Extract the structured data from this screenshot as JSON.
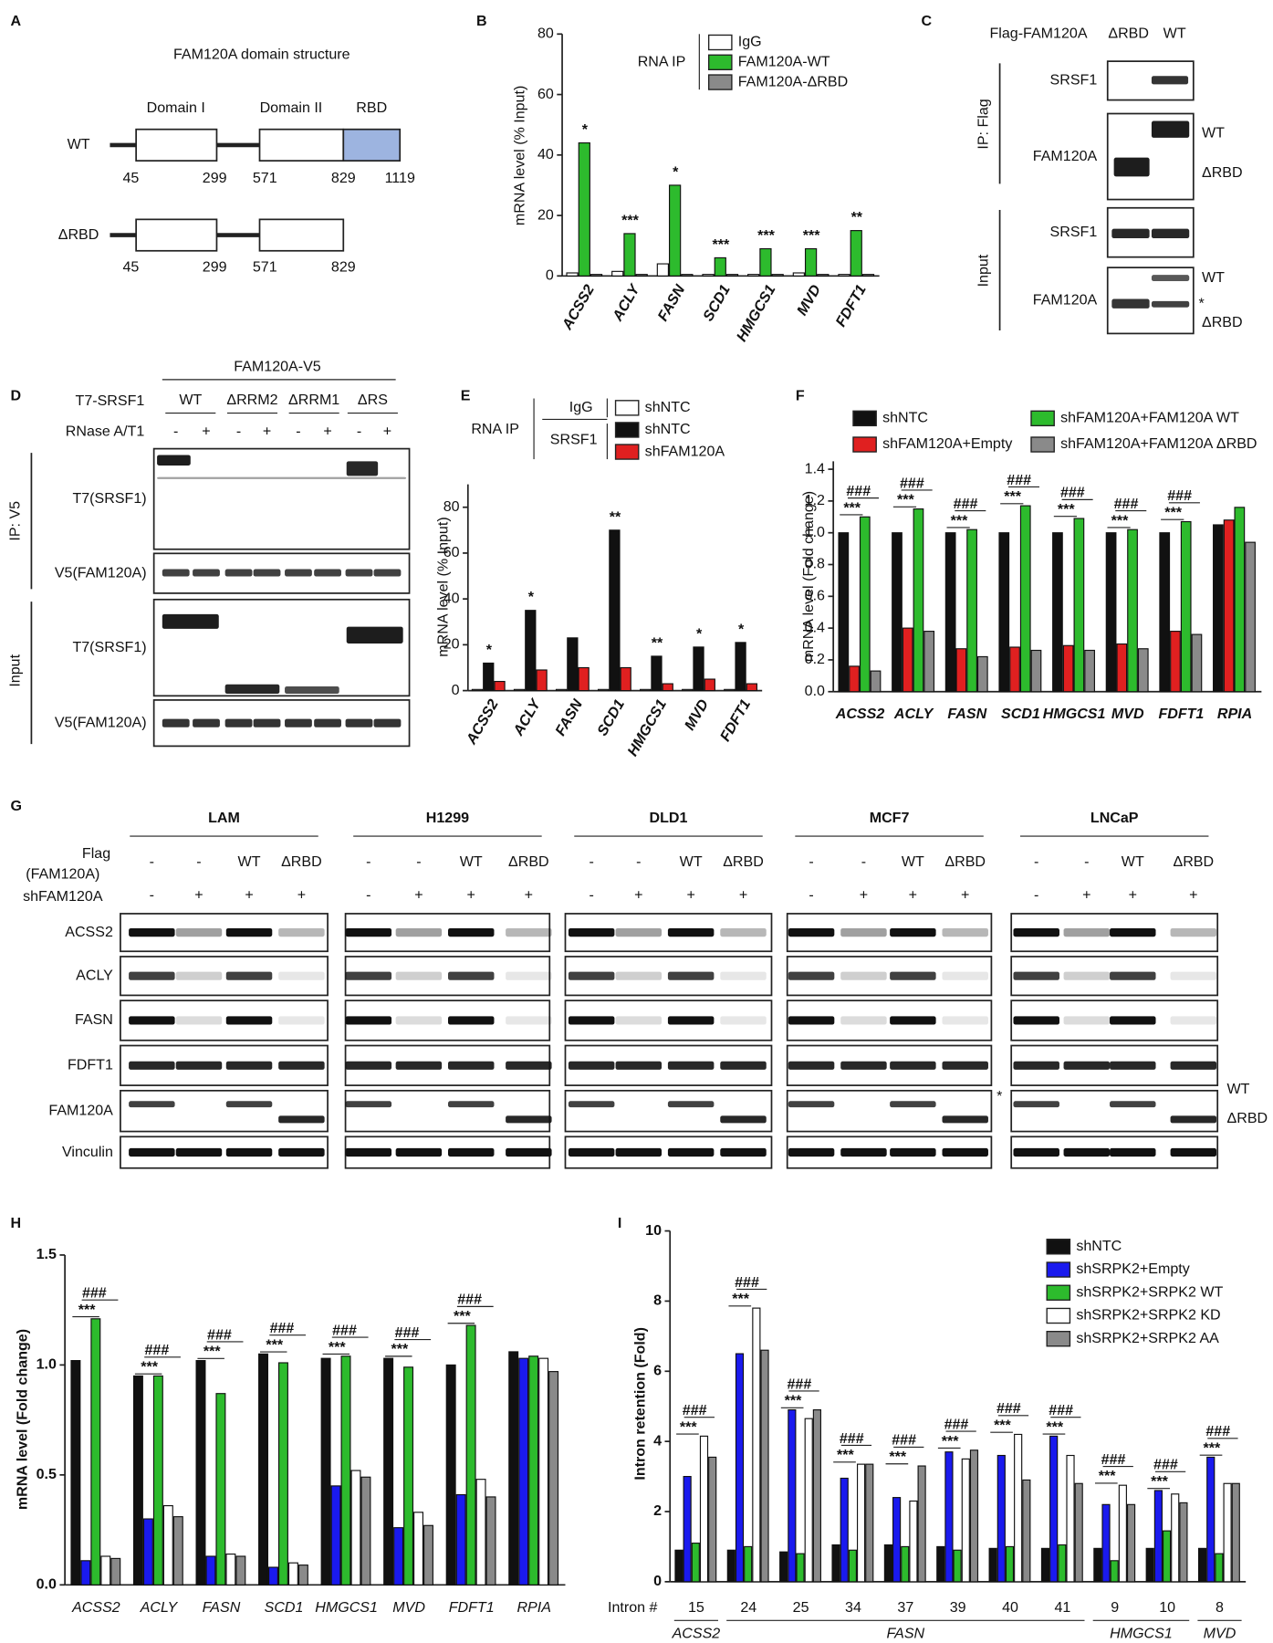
{
  "panel_labels": [
    "A",
    "B",
    "C",
    "D",
    "E",
    "F",
    "G",
    "H",
    "I"
  ],
  "panel_a": {
    "title": "FAM120A domain structure",
    "rows": [
      {
        "label": "WT",
        "domains": [
          "Domain I",
          "Domain II",
          "RBD"
        ],
        "positions": [
          45,
          299,
          571,
          829,
          1119
        ]
      },
      {
        "label": "ΔRBD",
        "positions": [
          45,
          299,
          571,
          829
        ]
      }
    ]
  },
  "panel_c": {
    "header": "Flag-FAM120A",
    "lanes": [
      "ΔRBD",
      "WT"
    ],
    "groups": [
      "IP: Flag",
      "Input"
    ],
    "blots": [
      "SRSF1",
      "FAM120A",
      "SRSF1",
      "FAM120A"
    ],
    "right_labels": [
      "WT",
      "ΔRBD",
      "WT",
      "*",
      "ΔRBD"
    ]
  },
  "panel_d": {
    "header": "FAM120A-V5",
    "row_labels": [
      "T7-SRSF1",
      "RNase A/T1"
    ],
    "constructs": [
      "WT",
      "ΔRRM2",
      "ΔRRM1",
      "ΔRS"
    ],
    "signs": [
      "-",
      "+"
    ],
    "groups": [
      "IP: V5",
      "Input"
    ],
    "blots": [
      "T7(SRSF1)",
      "V5(FAM120A)",
      "T7(SRSF1)",
      "V5(FAM120A)"
    ]
  },
  "panel_g": {
    "cell_lines": [
      "LAM",
      "H1299",
      "DLD1",
      "MCF7",
      "LNCaP"
    ],
    "row_labels": [
      "Flag",
      "(FAM120A)",
      "shFAM120A"
    ],
    "flag": [
      "-",
      "-",
      "WT",
      "ΔRBD"
    ],
    "sh": [
      "-",
      "+",
      "+",
      "+"
    ],
    "blots": [
      "ACSS2",
      "ACLY",
      "FASN",
      "FDFT1",
      "FAM120A",
      "Vinculin"
    ],
    "right_labels": [
      "*",
      "WT",
      "ΔRBD"
    ]
  },
  "chart_data": [
    {
      "type": "bar",
      "y_label": "mRNA level (% Input)",
      "legend_title": "RNA IP",
      "categories": [
        "ACSS2",
        "ACLY",
        "FASN",
        "SCD1",
        "HMGCS1",
        "MVD",
        "FDFT1"
      ],
      "series": [
        {
          "name": "IgG",
          "color": "#ffffff",
          "values": [
            1,
            1.5,
            4,
            0.5,
            0.5,
            1,
            0.5
          ]
        },
        {
          "name": "FAM120A-WT",
          "color": "#2dbb2d",
          "values": [
            44,
            14,
            30,
            6,
            9,
            9,
            15
          ]
        },
        {
          "name": "FAM120A-ΔRBD",
          "color": "#8a8a8a",
          "values": [
            0.5,
            0.5,
            0.5,
            0.5,
            0.5,
            0.5,
            0.5
          ]
        }
      ],
      "annotations": [
        "*",
        "***",
        "*",
        "***",
        "***",
        "***",
        "**"
      ],
      "ylim": [
        0,
        80
      ],
      "yticks": [
        0,
        20,
        40,
        60,
        80
      ]
    },
    {
      "type": "bar",
      "y_label": "mRNA level (% Input)",
      "legend_title": "RNA IP",
      "legend_groups": [
        "IgG",
        "SRSF1"
      ],
      "categories": [
        "ACSS2",
        "ACLY",
        "FASN",
        "SCD1",
        "HMGCS1",
        "MVD",
        "FDFT1"
      ],
      "series": [
        {
          "name": "shNTC",
          "color": "#ffffff",
          "values": [
            0.5,
            0.5,
            0.5,
            0.5,
            0.5,
            0.5,
            0.5
          ]
        },
        {
          "name": "shNTC",
          "color": "#111111",
          "values": [
            12,
            35,
            23,
            70,
            15,
            19,
            21
          ]
        },
        {
          "name": "shFAM120A",
          "color": "#e02020",
          "values": [
            4,
            9,
            10,
            10,
            3,
            5,
            3
          ]
        }
      ],
      "annotations": [
        "*",
        "*",
        null,
        "**",
        "**",
        "*",
        "*"
      ],
      "ylim": [
        0,
        90
      ],
      "yticks": [
        0,
        20,
        40,
        60,
        80
      ]
    },
    {
      "type": "bar",
      "y_label": "mRNA level (Fold change)",
      "categories": [
        "ACSS2",
        "ACLY",
        "FASN",
        "SCD1",
        "HMGCS1",
        "MVD",
        "FDFT1",
        "RPIA"
      ],
      "series": [
        {
          "name": "shNTC",
          "color": "#111111",
          "values": [
            1,
            1,
            1,
            1,
            1,
            1,
            1,
            1.05
          ]
        },
        {
          "name": "shFAM120A+Empty",
          "color": "#e02020",
          "values": [
            0.16,
            0.4,
            0.27,
            0.28,
            0.29,
            0.3,
            0.38,
            1.08
          ]
        },
        {
          "name": "shFAM120A+FAM120A WT",
          "color": "#2dbb2d",
          "values": [
            1.1,
            1.15,
            1.02,
            1.17,
            1.09,
            1.02,
            1.07,
            1.16
          ]
        },
        {
          "name": "shFAM120A+FAM120A ΔRBD",
          "color": "#8a8a8a",
          "values": [
            0.13,
            0.38,
            0.22,
            0.26,
            0.26,
            0.27,
            0.36,
            0.94
          ]
        }
      ],
      "annotations": [
        [
          "***",
          "###"
        ],
        [
          "***",
          "###"
        ],
        [
          "***",
          "###"
        ],
        [
          "***",
          "###"
        ],
        [
          "***",
          "###"
        ],
        [
          "***",
          "###"
        ],
        [
          "***",
          "###"
        ],
        null
      ],
      "ylim": [
        0,
        1.45
      ],
      "yticks": [
        {
          "value": 0,
          "label": "0.0"
        },
        0.2,
        0.4,
        0.6,
        0.8,
        {
          "value": 1,
          "label": "1.0"
        },
        1.2,
        1.4
      ]
    },
    {
      "type": "bar",
      "y_label": "mRNA level (Fold change)",
      "categories": [
        "ACSS2",
        "ACLY",
        "FASN",
        "SCD1",
        "HMGCS1",
        "MVD",
        "FDFT1",
        "RPIA"
      ],
      "series": [
        {
          "color": "#111111",
          "values": [
            1.02,
            0.95,
            1.02,
            1.05,
            1.03,
            1.03,
            1.0,
            1.06
          ]
        },
        {
          "color": "#1a1aee",
          "values": [
            0.11,
            0.3,
            0.13,
            0.08,
            0.45,
            0.26,
            0.41,
            1.03
          ]
        },
        {
          "color": "#2dbb2d",
          "values": [
            1.21,
            0.95,
            0.87,
            1.01,
            1.04,
            0.99,
            1.18,
            1.04
          ]
        },
        {
          "color": "#ffffff",
          "values": [
            0.13,
            0.36,
            0.14,
            0.1,
            0.52,
            0.33,
            0.48,
            1.03
          ]
        },
        {
          "color": "#8a8a8a",
          "values": [
            0.12,
            0.31,
            0.13,
            0.09,
            0.49,
            0.27,
            0.4,
            0.97
          ]
        }
      ],
      "annotations": [
        [
          "***",
          "###"
        ],
        [
          "***",
          "###"
        ],
        [
          "***",
          "###"
        ],
        [
          "***",
          "###"
        ],
        [
          "***",
          "###"
        ],
        [
          "***",
          "###"
        ],
        [
          "***",
          "###"
        ],
        null
      ],
      "ylim": [
        0,
        1.5
      ],
      "yticks": [
        {
          "value": 0,
          "label": "0.0"
        },
        0.5,
        {
          "value": 1,
          "label": "1.0"
        },
        1.5
      ]
    },
    {
      "type": "bar",
      "y_label": "Intron retention (Fold)",
      "x_label": "Intron #",
      "categories": [
        "15",
        "24",
        "25",
        "34",
        "37",
        "39",
        "40",
        "41",
        "9",
        "10",
        "8"
      ],
      "groups": [
        {
          "label": "ACSS2",
          "size": 1
        },
        {
          "label": "FASN",
          "size": 7
        },
        {
          "label": "HMGCS1",
          "size": 2
        },
        {
          "label": "MVD",
          "size": 1
        }
      ],
      "series": [
        {
          "name": "shNTC",
          "color": "#111111",
          "values": [
            0.9,
            0.9,
            0.85,
            1.05,
            1.05,
            1,
            0.95,
            0.95,
            0.95,
            0.95,
            0.95
          ]
        },
        {
          "name": "shSRPK2+Empty",
          "color": "#1a1aee",
          "values": [
            3.0,
            6.5,
            4.9,
            2.95,
            2.4,
            3.7,
            3.6,
            4.15,
            2.2,
            2.6,
            3.55
          ]
        },
        {
          "name": "shSRPK2+SRPK2 WT",
          "color": "#2dbb2d",
          "values": [
            1.1,
            1.0,
            0.8,
            0.9,
            1.0,
            0.9,
            1.0,
            1.05,
            0.6,
            1.45,
            0.8
          ]
        },
        {
          "name": "shSRPK2+SRPK2 KD",
          "color": "#ffffff",
          "values": [
            4.15,
            7.8,
            4.65,
            3.35,
            2.3,
            3.5,
            4.2,
            3.6,
            2.75,
            2.5,
            2.8
          ]
        },
        {
          "name": "shSRPK2+SRPK2 AA",
          "color": "#8a8a8a",
          "values": [
            3.55,
            6.6,
            4.9,
            3.35,
            3.3,
            3.75,
            2.9,
            2.8,
            2.2,
            2.25,
            2.8
          ]
        }
      ],
      "annotations": [
        [
          "***",
          "###"
        ],
        [
          "***",
          "###"
        ],
        [
          "***",
          "###"
        ],
        [
          "***",
          "###"
        ],
        [
          "***",
          "###"
        ],
        [
          "***",
          "###"
        ],
        [
          "***",
          "###"
        ],
        [
          "***",
          "###"
        ],
        [
          "***",
          "###"
        ],
        [
          "***",
          "###"
        ],
        [
          "***",
          "###"
        ]
      ],
      "ylim": [
        0,
        10
      ],
      "yticks": [
        0,
        2,
        4,
        6,
        8,
        10
      ]
    }
  ]
}
